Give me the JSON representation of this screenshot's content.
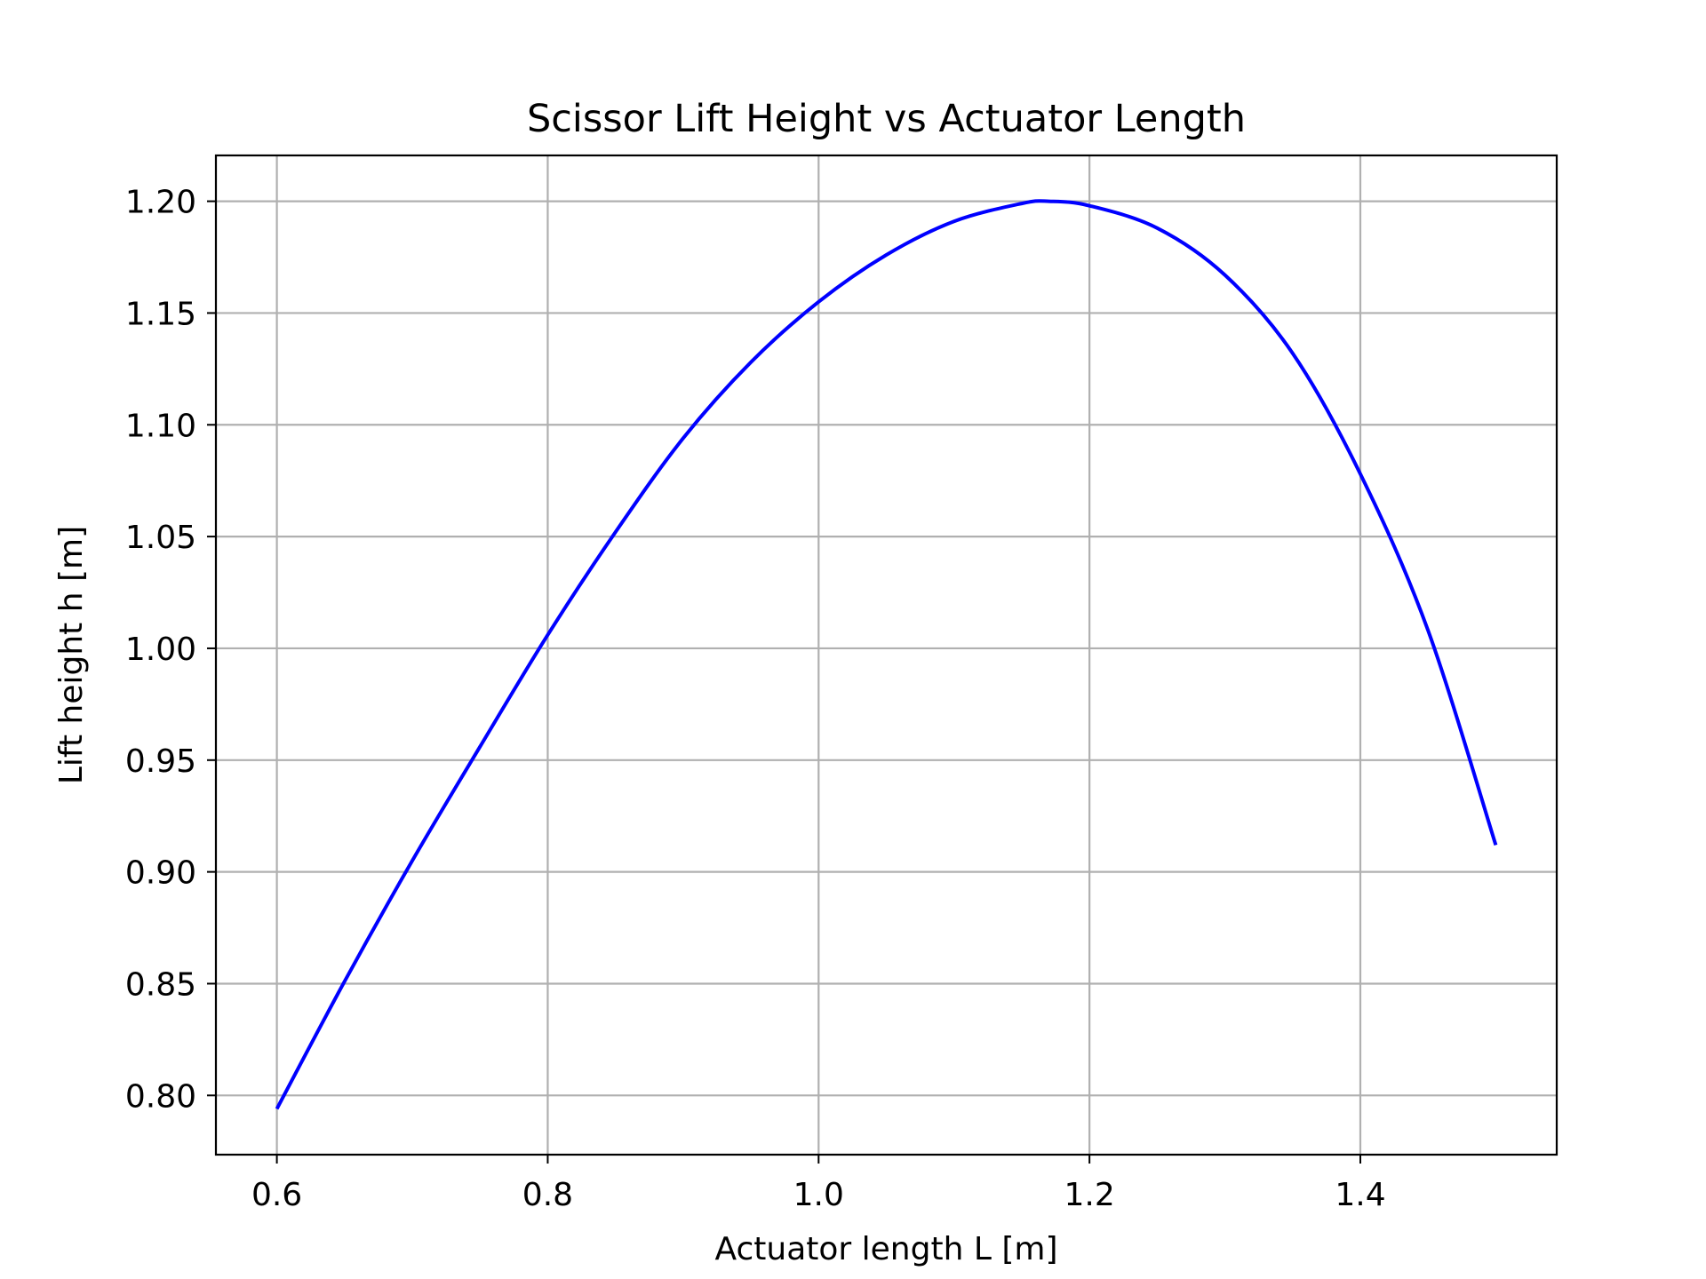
{
  "chart_data": {
    "type": "line",
    "title": "Scissor Lift Height vs Actuator Length",
    "xlabel": "Actuator length L [m]",
    "ylabel": "Lift height h [m]",
    "xlim": [
      0.555,
      1.545
    ],
    "ylim": [
      0.7735,
      1.2205
    ],
    "x_ticks": [
      0.6,
      0.8,
      1.0,
      1.2,
      1.4
    ],
    "x_tick_labels": [
      "0.6",
      "0.8",
      "1.0",
      "1.2",
      "1.4"
    ],
    "y_ticks": [
      0.8,
      0.85,
      0.9,
      0.95,
      1.0,
      1.05,
      1.1,
      1.15,
      1.2
    ],
    "y_tick_labels": [
      "0.80",
      "0.85",
      "0.90",
      "0.95",
      "1.00",
      "1.05",
      "1.10",
      "1.15",
      "1.20"
    ],
    "grid": true,
    "series": [
      {
        "color": "#0000ff",
        "x": [
          0.6,
          0.65,
          0.7,
          0.75,
          0.8,
          0.85,
          0.9,
          0.95,
          1.0,
          1.05,
          1.1,
          1.15,
          1.17,
          1.2,
          1.25,
          1.3,
          1.35,
          1.4,
          1.45,
          1.5
        ],
        "y": [
          0.794,
          0.851,
          0.905,
          0.956,
          1.006,
          1.052,
          1.094,
          1.128,
          1.155,
          1.176,
          1.191,
          1.199,
          1.2,
          1.198,
          1.188,
          1.167,
          1.132,
          1.078,
          1.008,
          0.912
        ]
      }
    ]
  }
}
